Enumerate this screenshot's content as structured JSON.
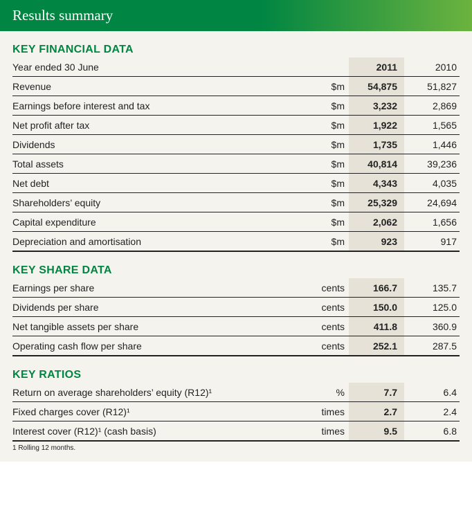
{
  "header": {
    "title": "Results summary"
  },
  "colors": {
    "brand_green": "#008542",
    "gradient_end": "#6cb33f",
    "page_bg": "#f5f3ee",
    "highlight_col_bg": "#e6e2d8",
    "rule": "#222222"
  },
  "sections": [
    {
      "title": "KEY FINANCIAL DATA",
      "header_row": {
        "label": "Year ended 30 June",
        "unit": "",
        "col1": "2011",
        "col2": "2010"
      },
      "rows": [
        {
          "label": "Revenue",
          "unit": "$m",
          "col1": "54,875",
          "col2": "51,827"
        },
        {
          "label": "Earnings before interest and tax",
          "unit": "$m",
          "col1": "3,232",
          "col2": "2,869"
        },
        {
          "label": "Net profit after tax",
          "unit": "$m",
          "col1": "1,922",
          "col2": "1,565"
        },
        {
          "label": "Dividends",
          "unit": "$m",
          "col1": "1,735",
          "col2": "1,446"
        },
        {
          "label": "Total assets",
          "unit": "$m",
          "col1": "40,814",
          "col2": "39,236"
        },
        {
          "label": "Net debt",
          "unit": "$m",
          "col1": "4,343",
          "col2": "4,035"
        },
        {
          "label": "Shareholders’ equity",
          "unit": "$m",
          "col1": "25,329",
          "col2": "24,694"
        },
        {
          "label": "Capital expenditure",
          "unit": "$m",
          "col1": "2,062",
          "col2": "1,656"
        },
        {
          "label": "Depreciation and amortisation",
          "unit": "$m",
          "col1": "923",
          "col2": "917"
        }
      ]
    },
    {
      "title": "KEY SHARE DATA",
      "rows": [
        {
          "label": "Earnings per share",
          "unit": "cents",
          "col1": "166.7",
          "col2": "135.7"
        },
        {
          "label": "Dividends per share",
          "unit": "cents",
          "col1": "150.0",
          "col2": "125.0"
        },
        {
          "label": "Net tangible assets per share",
          "unit": "cents",
          "col1": "411.8",
          "col2": "360.9"
        },
        {
          "label": "Operating cash flow per share",
          "unit": "cents",
          "col1": "252.1",
          "col2": "287.5"
        }
      ]
    },
    {
      "title": "KEY RATIOS",
      "rows": [
        {
          "label": "Return on average shareholders’ equity (R12)¹",
          "unit": "%",
          "col1": "7.7",
          "col2": "6.4"
        },
        {
          "label": "Fixed charges cover (R12)¹",
          "unit": "times",
          "col1": "2.7",
          "col2": "2.4"
        },
        {
          "label": "Interest cover (R12)¹ (cash basis)",
          "unit": "times",
          "col1": "9.5",
          "col2": "6.8"
        }
      ]
    }
  ],
  "footnote": "1 Rolling 12 months."
}
